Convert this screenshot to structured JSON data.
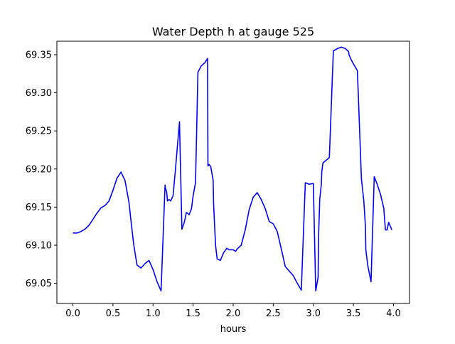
{
  "chart_data": {
    "type": "line",
    "title": "Water Depth h at gauge 525",
    "xlabel": "hours",
    "ylabel": "",
    "xlim": [
      -0.2,
      4.2
    ],
    "ylim": [
      69.0235,
      69.3677
    ],
    "xticks": [
      0.0,
      0.5,
      1.0,
      1.5,
      2.0,
      2.5,
      3.0,
      3.5,
      4.0
    ],
    "xtick_labels": [
      "0.0",
      "0.5",
      "1.0",
      "1.5",
      "2.0",
      "2.5",
      "3.0",
      "3.5",
      "4.0"
    ],
    "yticks": [
      69.05,
      69.1,
      69.15,
      69.2,
      69.25,
      69.3,
      69.35
    ],
    "ytick_labels": [
      "69.05",
      "69.10",
      "69.15",
      "69.20",
      "69.25",
      "69.30",
      "69.35"
    ],
    "grid": false,
    "series": [
      {
        "color": "#0000ff",
        "x": [
          0.0,
          0.05,
          0.1,
          0.15,
          0.2,
          0.25,
          0.3,
          0.35,
          0.4,
          0.45,
          0.5,
          0.55,
          0.6,
          0.65,
          0.7,
          0.73,
          0.76,
          0.8,
          0.85,
          0.9,
          0.95,
          1.0,
          1.05,
          1.1,
          1.15,
          1.155,
          1.17,
          1.18,
          1.2,
          1.22,
          1.25,
          1.28,
          1.3,
          1.33,
          1.36,
          1.39,
          1.41,
          1.415,
          1.43,
          1.45,
          1.48,
          1.5,
          1.53,
          1.56,
          1.6,
          1.65,
          1.68,
          1.685,
          1.7,
          1.72,
          1.75,
          1.755,
          1.78,
          1.8,
          1.84,
          1.88,
          1.92,
          1.95,
          2.0,
          2.03,
          2.05,
          2.1,
          2.15,
          2.2,
          2.25,
          2.3,
          2.35,
          2.4,
          2.45,
          2.5,
          2.55,
          2.6,
          2.65,
          2.7,
          2.75,
          2.8,
          2.85,
          2.9,
          2.95,
          3.0,
          3.03,
          3.06,
          3.065,
          3.08,
          3.1,
          3.105,
          3.12,
          3.2,
          3.25,
          3.3,
          3.35,
          3.4,
          3.44,
          3.445,
          3.47,
          3.5,
          3.55,
          3.6,
          3.63,
          3.65,
          3.655,
          3.68,
          3.72,
          3.76,
          3.8,
          3.84,
          3.88,
          3.885,
          3.9,
          3.92,
          3.94,
          3.96,
          3.98
        ],
        "y": [
          69.116,
          69.116,
          69.118,
          69.121,
          69.126,
          69.134,
          69.142,
          69.149,
          69.152,
          69.158,
          69.172,
          69.188,
          69.196,
          69.185,
          69.156,
          69.127,
          69.1,
          69.074,
          69.07,
          69.076,
          69.08,
          69.068,
          69.052,
          69.04,
          69.179,
          69.175,
          69.17,
          69.158,
          69.16,
          69.158,
          69.165,
          69.2,
          69.225,
          69.262,
          69.121,
          69.13,
          69.14,
          69.143,
          69.142,
          69.14,
          69.148,
          69.165,
          69.182,
          69.327,
          69.335,
          69.34,
          69.345,
          69.204,
          69.206,
          69.203,
          69.185,
          69.155,
          69.1,
          69.082,
          69.08,
          69.09,
          69.096,
          69.094,
          69.094,
          69.092,
          69.095,
          69.1,
          69.12,
          69.147,
          69.163,
          69.169,
          69.16,
          69.148,
          69.131,
          69.128,
          69.118,
          69.095,
          69.072,
          69.066,
          69.06,
          69.05,
          69.041,
          69.182,
          69.18,
          69.181,
          69.04,
          69.058,
          69.11,
          69.16,
          69.18,
          69.196,
          69.208,
          69.215,
          69.355,
          69.358,
          69.36,
          69.358,
          69.354,
          69.35,
          69.344,
          69.338,
          69.329,
          69.187,
          69.158,
          69.125,
          69.094,
          69.073,
          69.052,
          69.19,
          69.179,
          69.166,
          69.148,
          69.14,
          69.12,
          69.12,
          69.13,
          69.125,
          69.12
        ]
      }
    ]
  }
}
